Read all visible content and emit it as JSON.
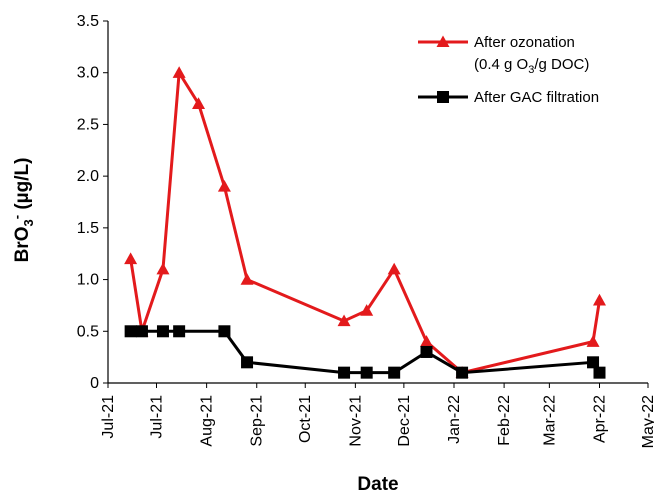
{
  "chart_data": {
    "type": "line",
    "title": "",
    "xlabel": "Date",
    "ylabel": "BrO3- (µg/L)",
    "ylabel_parts": {
      "base": "BrO",
      "sub": "3",
      "sup": "-",
      "unit": " (µg/L)"
    },
    "x_tick_labels": [
      "Jul-21",
      "Jul-21",
      "Aug-21",
      "Sep-21",
      "Oct-21",
      "Nov-21",
      "Dec-21",
      "Jan-22",
      "Feb-22",
      "Mar-22",
      "Apr-22",
      "May-22"
    ],
    "y_tick_labels": [
      "0",
      "0.5",
      "1.0",
      "1.5",
      "2.0",
      "2.5",
      "3.0",
      "3.5"
    ],
    "ylim": [
      0,
      3.5
    ],
    "legend_position": "top-right",
    "series": [
      {
        "legend": {
          "line1": "After ozonation",
          "line2_prefix": "(0.4 g O",
          "line2_sub": "3",
          "line2_suffix": "/g DOC)"
        },
        "color": "#e31a1c",
        "marker": "triangle",
        "x": [
          "2021-06-15",
          "2021-06-22",
          "2021-07-05",
          "2021-07-15",
          "2021-07-27",
          "2021-08-12",
          "2021-08-26",
          "2021-10-25",
          "2021-11-08",
          "2021-11-25",
          "2021-12-15",
          "2022-01-06",
          "2022-03-28",
          "2022-04-01"
        ],
        "values": [
          1.2,
          0.5,
          1.1,
          3.0,
          2.7,
          1.9,
          1.0,
          0.6,
          0.7,
          1.1,
          0.4,
          0.1,
          0.4,
          0.8
        ]
      },
      {
        "legend": {
          "line1": "After GAC filtration"
        },
        "color": "#000000",
        "marker": "square",
        "x": [
          "2021-06-15",
          "2021-06-22",
          "2021-07-05",
          "2021-07-15",
          "2021-08-12",
          "2021-08-26",
          "2021-10-25",
          "2021-11-08",
          "2021-11-25",
          "2021-12-15",
          "2022-01-06",
          "2022-03-28",
          "2022-04-01"
        ],
        "values": [
          0.5,
          0.5,
          0.5,
          0.5,
          0.5,
          0.2,
          0.1,
          0.1,
          0.1,
          0.3,
          0.1,
          0.2,
          0.1
        ]
      }
    ]
  }
}
